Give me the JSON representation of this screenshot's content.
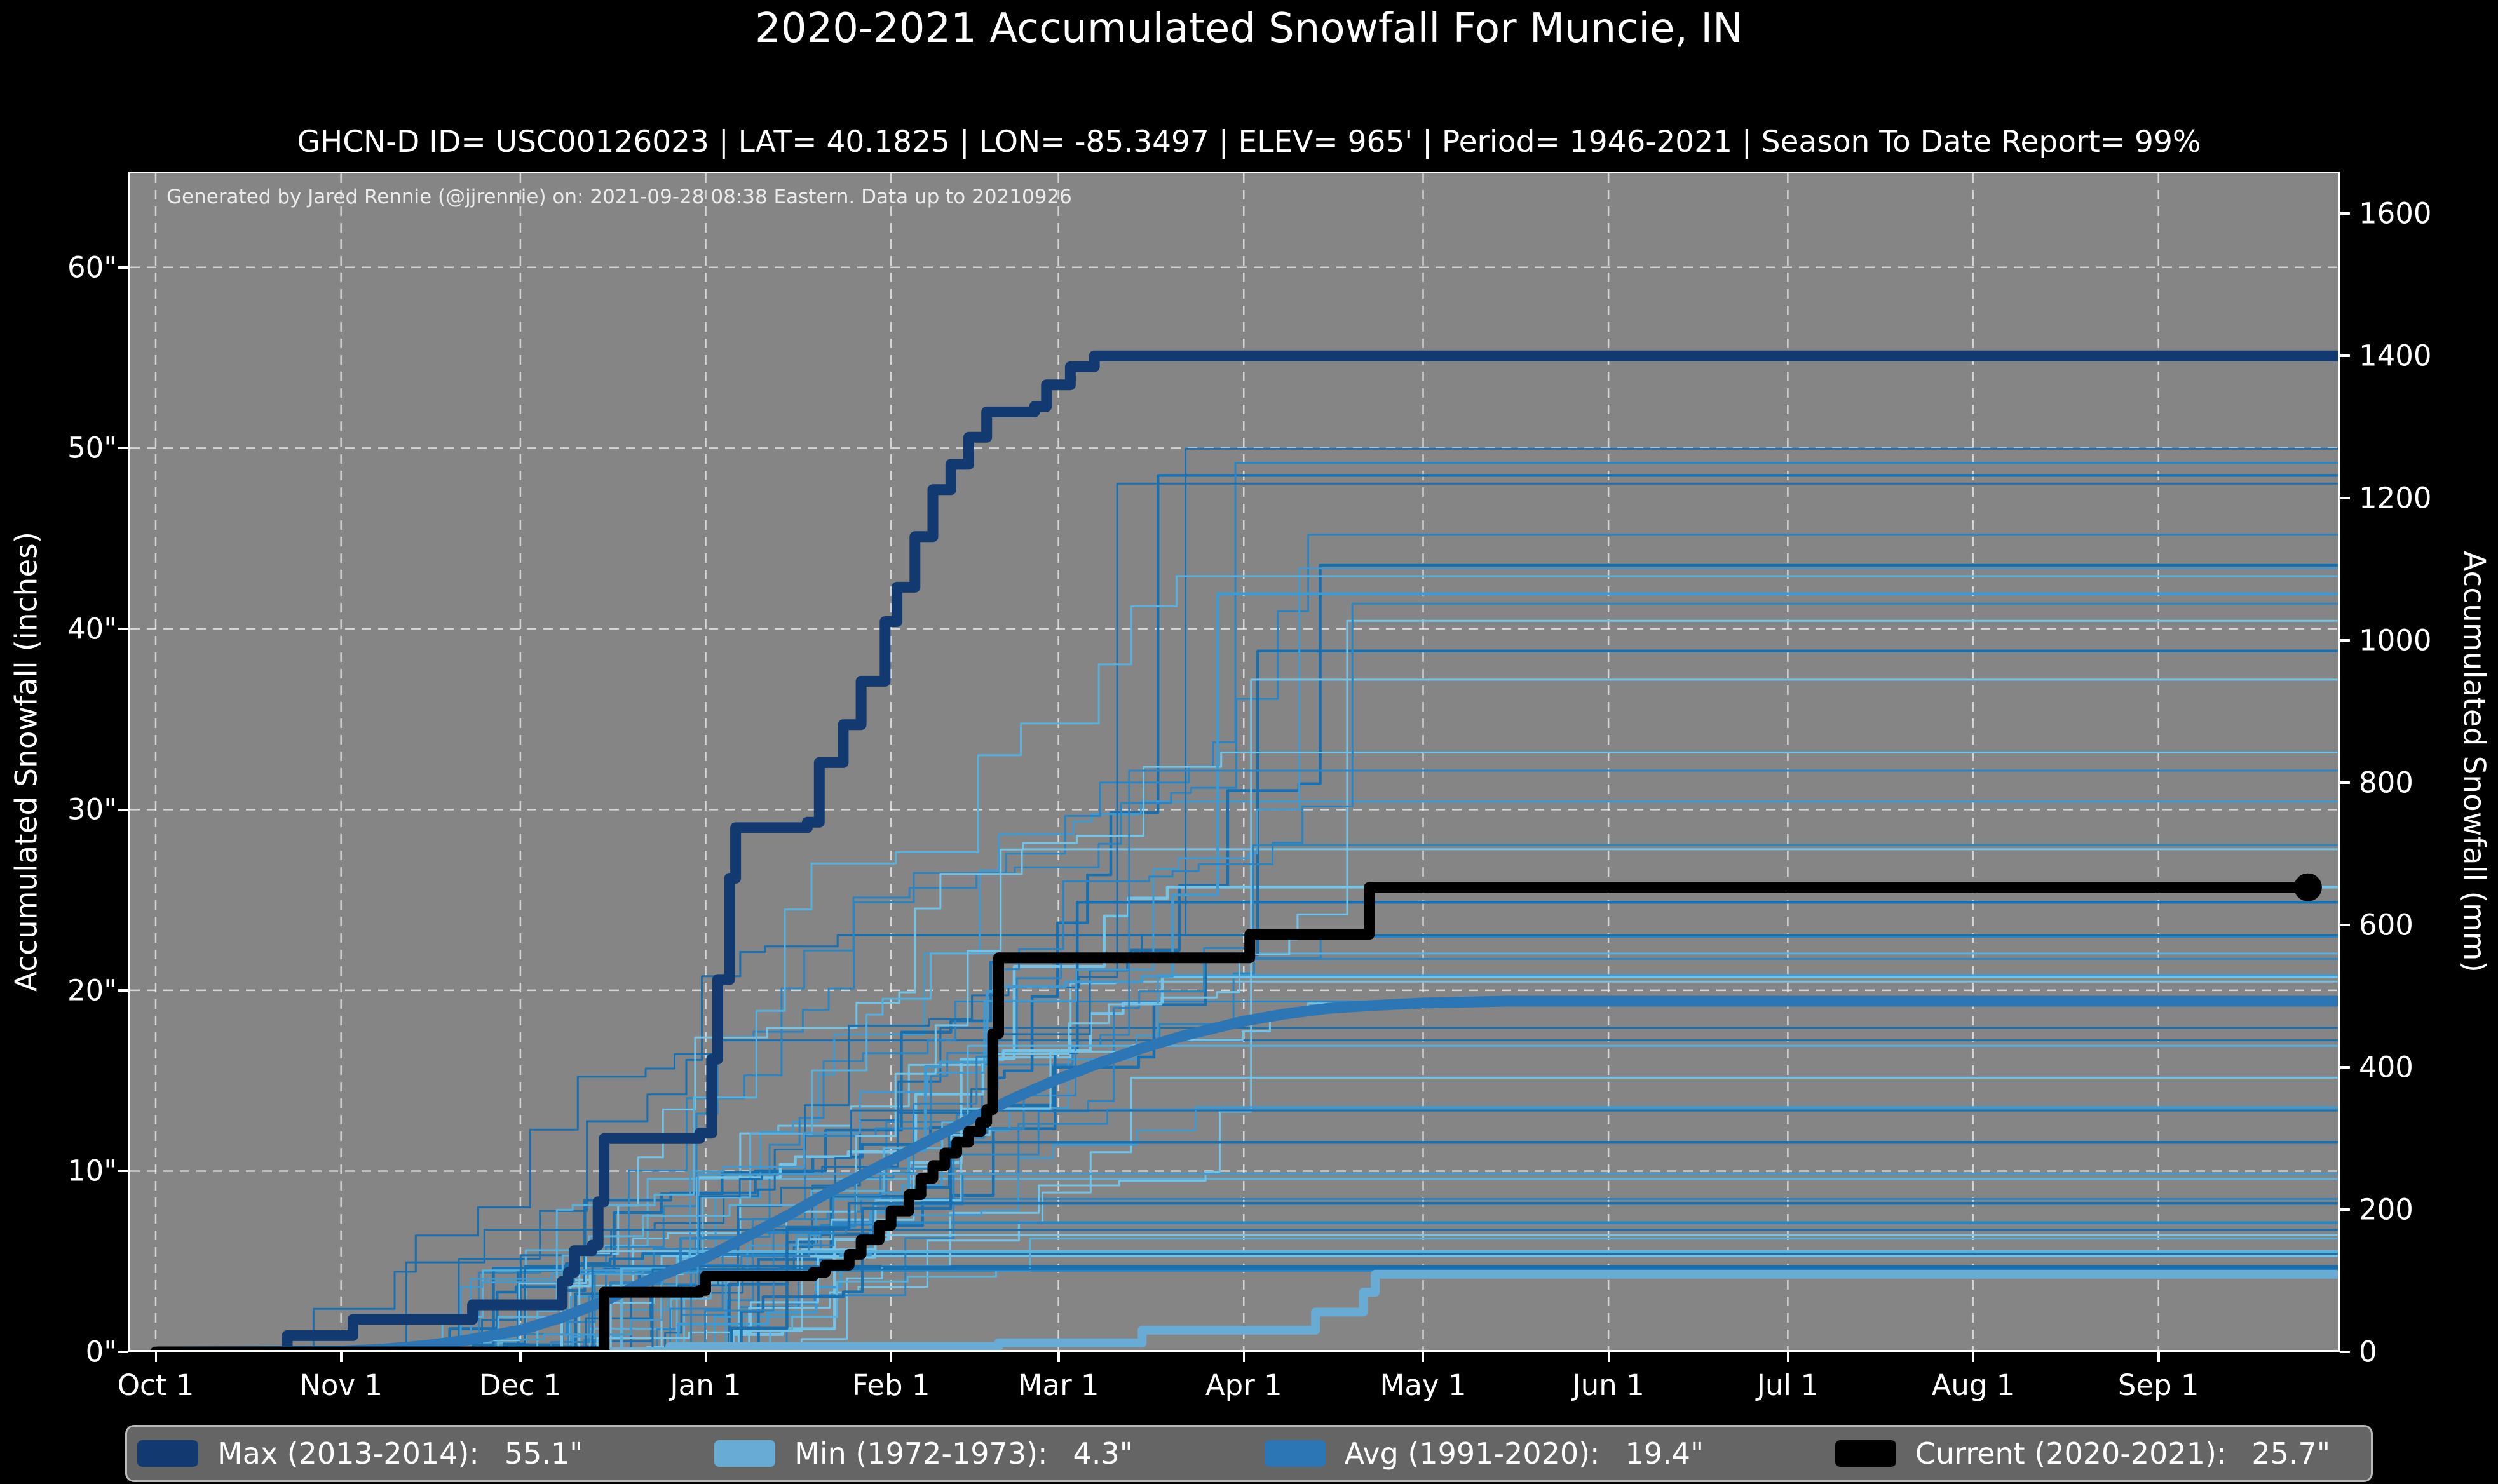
{
  "header": {
    "title": "2020-2021 Accumulated Snowfall For Muncie, IN",
    "subtitle": "GHCN-D ID= USC00126023 | LAT= 40.1825 | LON= -85.3497 | ELEV= 965' | Period= 1946-2021 | Season To Date Report= 99%"
  },
  "plot": {
    "attribution": "Generated by Jared Rennie (@jjrennie) on: 2021-09-28 08:38 Eastern. Data up to 20210926"
  },
  "axes": {
    "left_label": "Accumulated Snowfall (inches)",
    "right_label": "Accumulated Snowfall (mm)",
    "x_ticks": [
      {
        "label": "Oct 1",
        "day": 0
      },
      {
        "label": "Nov 1",
        "day": 31
      },
      {
        "label": "Dec 1",
        "day": 61
      },
      {
        "label": "Jan 1",
        "day": 92
      },
      {
        "label": "Feb 1",
        "day": 123
      },
      {
        "label": "Mar 1",
        "day": 151
      },
      {
        "label": "Apr 1",
        "day": 182
      },
      {
        "label": "May 1",
        "day": 212
      },
      {
        "label": "Jun 1",
        "day": 243
      },
      {
        "label": "Jul 1",
        "day": 273
      },
      {
        "label": "Aug 1",
        "day": 304
      },
      {
        "label": "Sep 1",
        "day": 335
      }
    ],
    "y_ticks_inches": [
      {
        "label": "0\"",
        "value": 0
      },
      {
        "label": "10\"",
        "value": 10
      },
      {
        "label": "20\"",
        "value": 20
      },
      {
        "label": "30\"",
        "value": 30
      },
      {
        "label": "40\"",
        "value": 40
      },
      {
        "label": "50\"",
        "value": 50
      },
      {
        "label": "60\"",
        "value": 60
      }
    ],
    "y_ticks_mm": [
      {
        "label": "0",
        "mm": 0
      },
      {
        "label": "200",
        "mm": 200
      },
      {
        "label": "400",
        "mm": 400
      },
      {
        "label": "600",
        "mm": 600
      },
      {
        "label": "800",
        "mm": 800
      },
      {
        "label": "1000",
        "mm": 1000
      },
      {
        "label": "1200",
        "mm": 1200
      },
      {
        "label": "1400",
        "mm": 1400
      },
      {
        "label": "1600",
        "mm": 1600
      }
    ]
  },
  "colors": {
    "figure_bg": "#000000",
    "plot_bg": "#858585",
    "grid": "#ffffff",
    "spine": "#ffffff",
    "text": "#ffffff",
    "legend_bg": "#656565",
    "legend_border": "#b9b9b9",
    "max": "#133a70",
    "min": "#68abd5",
    "avg": "#2d76b5",
    "current": "#000000"
  },
  "chart_data": {
    "type": "line",
    "title": "2020-2021 Accumulated Snowfall For Muncie, IN",
    "x_unit": "days since Oct 1",
    "ylim_inches": [
      0,
      65.3
    ],
    "mm_per_inch": 25.4,
    "grid": "dashed white at month ticks and every 10 inches",
    "legend_position": "bottom",
    "series": [
      {
        "name": "Max (2013-2014)",
        "season_total_inches": 55.1,
        "color": "#133a70",
        "width": 17,
        "step": true,
        "points": [
          [
            0,
            0
          ],
          [
            21,
            0
          ],
          [
            22,
            0.9
          ],
          [
            32,
            0.9
          ],
          [
            33,
            1.8
          ],
          [
            52,
            1.8
          ],
          [
            53,
            2.6
          ],
          [
            66,
            2.6
          ],
          [
            68,
            3.9
          ],
          [
            69,
            4.4
          ],
          [
            70,
            5.6
          ],
          [
            73,
            5.9
          ],
          [
            74,
            8.3
          ],
          [
            75,
            11.8
          ],
          [
            91,
            12.1
          ],
          [
            93,
            16.2
          ],
          [
            94,
            20.6
          ],
          [
            96,
            26.2
          ],
          [
            97,
            29.0
          ],
          [
            109,
            29.3
          ],
          [
            111,
            32.6
          ],
          [
            115,
            34.7
          ],
          [
            118,
            37.1
          ],
          [
            122,
            40.4
          ],
          [
            124,
            42.3
          ],
          [
            127,
            45.1
          ],
          [
            130,
            47.7
          ],
          [
            133,
            49.1
          ],
          [
            136,
            50.6
          ],
          [
            139,
            52.0
          ],
          [
            147,
            52.3
          ],
          [
            149,
            53.5
          ],
          [
            153,
            54.5
          ],
          [
            157,
            55.1
          ],
          [
            365,
            55.1
          ]
        ]
      },
      {
        "name": "Min (1972-1973)",
        "season_total_inches": 4.3,
        "color": "#68abd5",
        "width": 14,
        "step": true,
        "points": [
          [
            0,
            0
          ],
          [
            85,
            0
          ],
          [
            86,
            0.3
          ],
          [
            140,
            0.3
          ],
          [
            141,
            0.5
          ],
          [
            163,
            0.5
          ],
          [
            165,
            1.2
          ],
          [
            192,
            1.2
          ],
          [
            194,
            2.2
          ],
          [
            200,
            2.2
          ],
          [
            202,
            3.3
          ],
          [
            204,
            4.3
          ],
          [
            365,
            4.3
          ]
        ]
      },
      {
        "name": "Avg (1991-2020)",
        "season_total_inches": 19.4,
        "color": "#2d76b5",
        "width": 17,
        "step": false,
        "points": [
          [
            0,
            0
          ],
          [
            31,
            0.05
          ],
          [
            38,
            0.15
          ],
          [
            45,
            0.35
          ],
          [
            52,
            0.65
          ],
          [
            61,
            1.2
          ],
          [
            68,
            1.9
          ],
          [
            75,
            2.8
          ],
          [
            82,
            3.9
          ],
          [
            92,
            5.2
          ],
          [
            99,
            6.4
          ],
          [
            106,
            7.6
          ],
          [
            113,
            8.9
          ],
          [
            123,
            10.6
          ],
          [
            130,
            11.8
          ],
          [
            137,
            13.0
          ],
          [
            144,
            14.1
          ],
          [
            151,
            15.1
          ],
          [
            158,
            16.0
          ],
          [
            165,
            16.8
          ],
          [
            172,
            17.5
          ],
          [
            182,
            18.3
          ],
          [
            189,
            18.7
          ],
          [
            196,
            19.0
          ],
          [
            203,
            19.15
          ],
          [
            212,
            19.3
          ],
          [
            226,
            19.4
          ],
          [
            365,
            19.4
          ]
        ]
      },
      {
        "name": "Current (2020-2021)",
        "season_total_inches": 25.7,
        "color": "#000000",
        "width": 17,
        "step": true,
        "end_dot": true,
        "points": [
          [
            0,
            0
          ],
          [
            74,
            0
          ],
          [
            75,
            3.3
          ],
          [
            91,
            3.4
          ],
          [
            92,
            4.2
          ],
          [
            110,
            4.4
          ],
          [
            112,
            4.8
          ],
          [
            116,
            5.4
          ],
          [
            118,
            6.2
          ],
          [
            121,
            7.0
          ],
          [
            123,
            7.8
          ],
          [
            126,
            8.7
          ],
          [
            128,
            9.6
          ],
          [
            130,
            10.3
          ],
          [
            132,
            11.0
          ],
          [
            134,
            11.6
          ],
          [
            136,
            12.2
          ],
          [
            138,
            12.7
          ],
          [
            139,
            13.4
          ],
          [
            140,
            17.6
          ],
          [
            141,
            21.8
          ],
          [
            181,
            21.8
          ],
          [
            183,
            23.1
          ],
          [
            202,
            23.1
          ],
          [
            203,
            25.7
          ],
          [
            360,
            25.7
          ]
        ]
      }
    ],
    "ensemble": {
      "description": "thin background staircases, one per season 1946-2021",
      "count": 62,
      "seed": 11,
      "total_range_inches": [
        4.5,
        50
      ],
      "start_day_range": [
        36,
        94
      ],
      "end_day_range": [
        150,
        208
      ],
      "colors": [
        "#1a6fae",
        "#2b85c2",
        "#4099cf",
        "#58b0dc",
        "#73c3e6"
      ],
      "width": 3
    }
  },
  "legend": {
    "items": [
      {
        "label": "Max (2013-2014):",
        "value": "55.1\"",
        "color": "#133a70"
      },
      {
        "label": "Min (1972-1973):",
        "value": "4.3\"",
        "color": "#68abd5"
      },
      {
        "label": "Avg (1991-2020):",
        "value": "19.4\"",
        "color": "#2d76b5"
      },
      {
        "label": "Current (2020-2021):",
        "value": "25.7\"",
        "color": "#000000"
      }
    ]
  }
}
